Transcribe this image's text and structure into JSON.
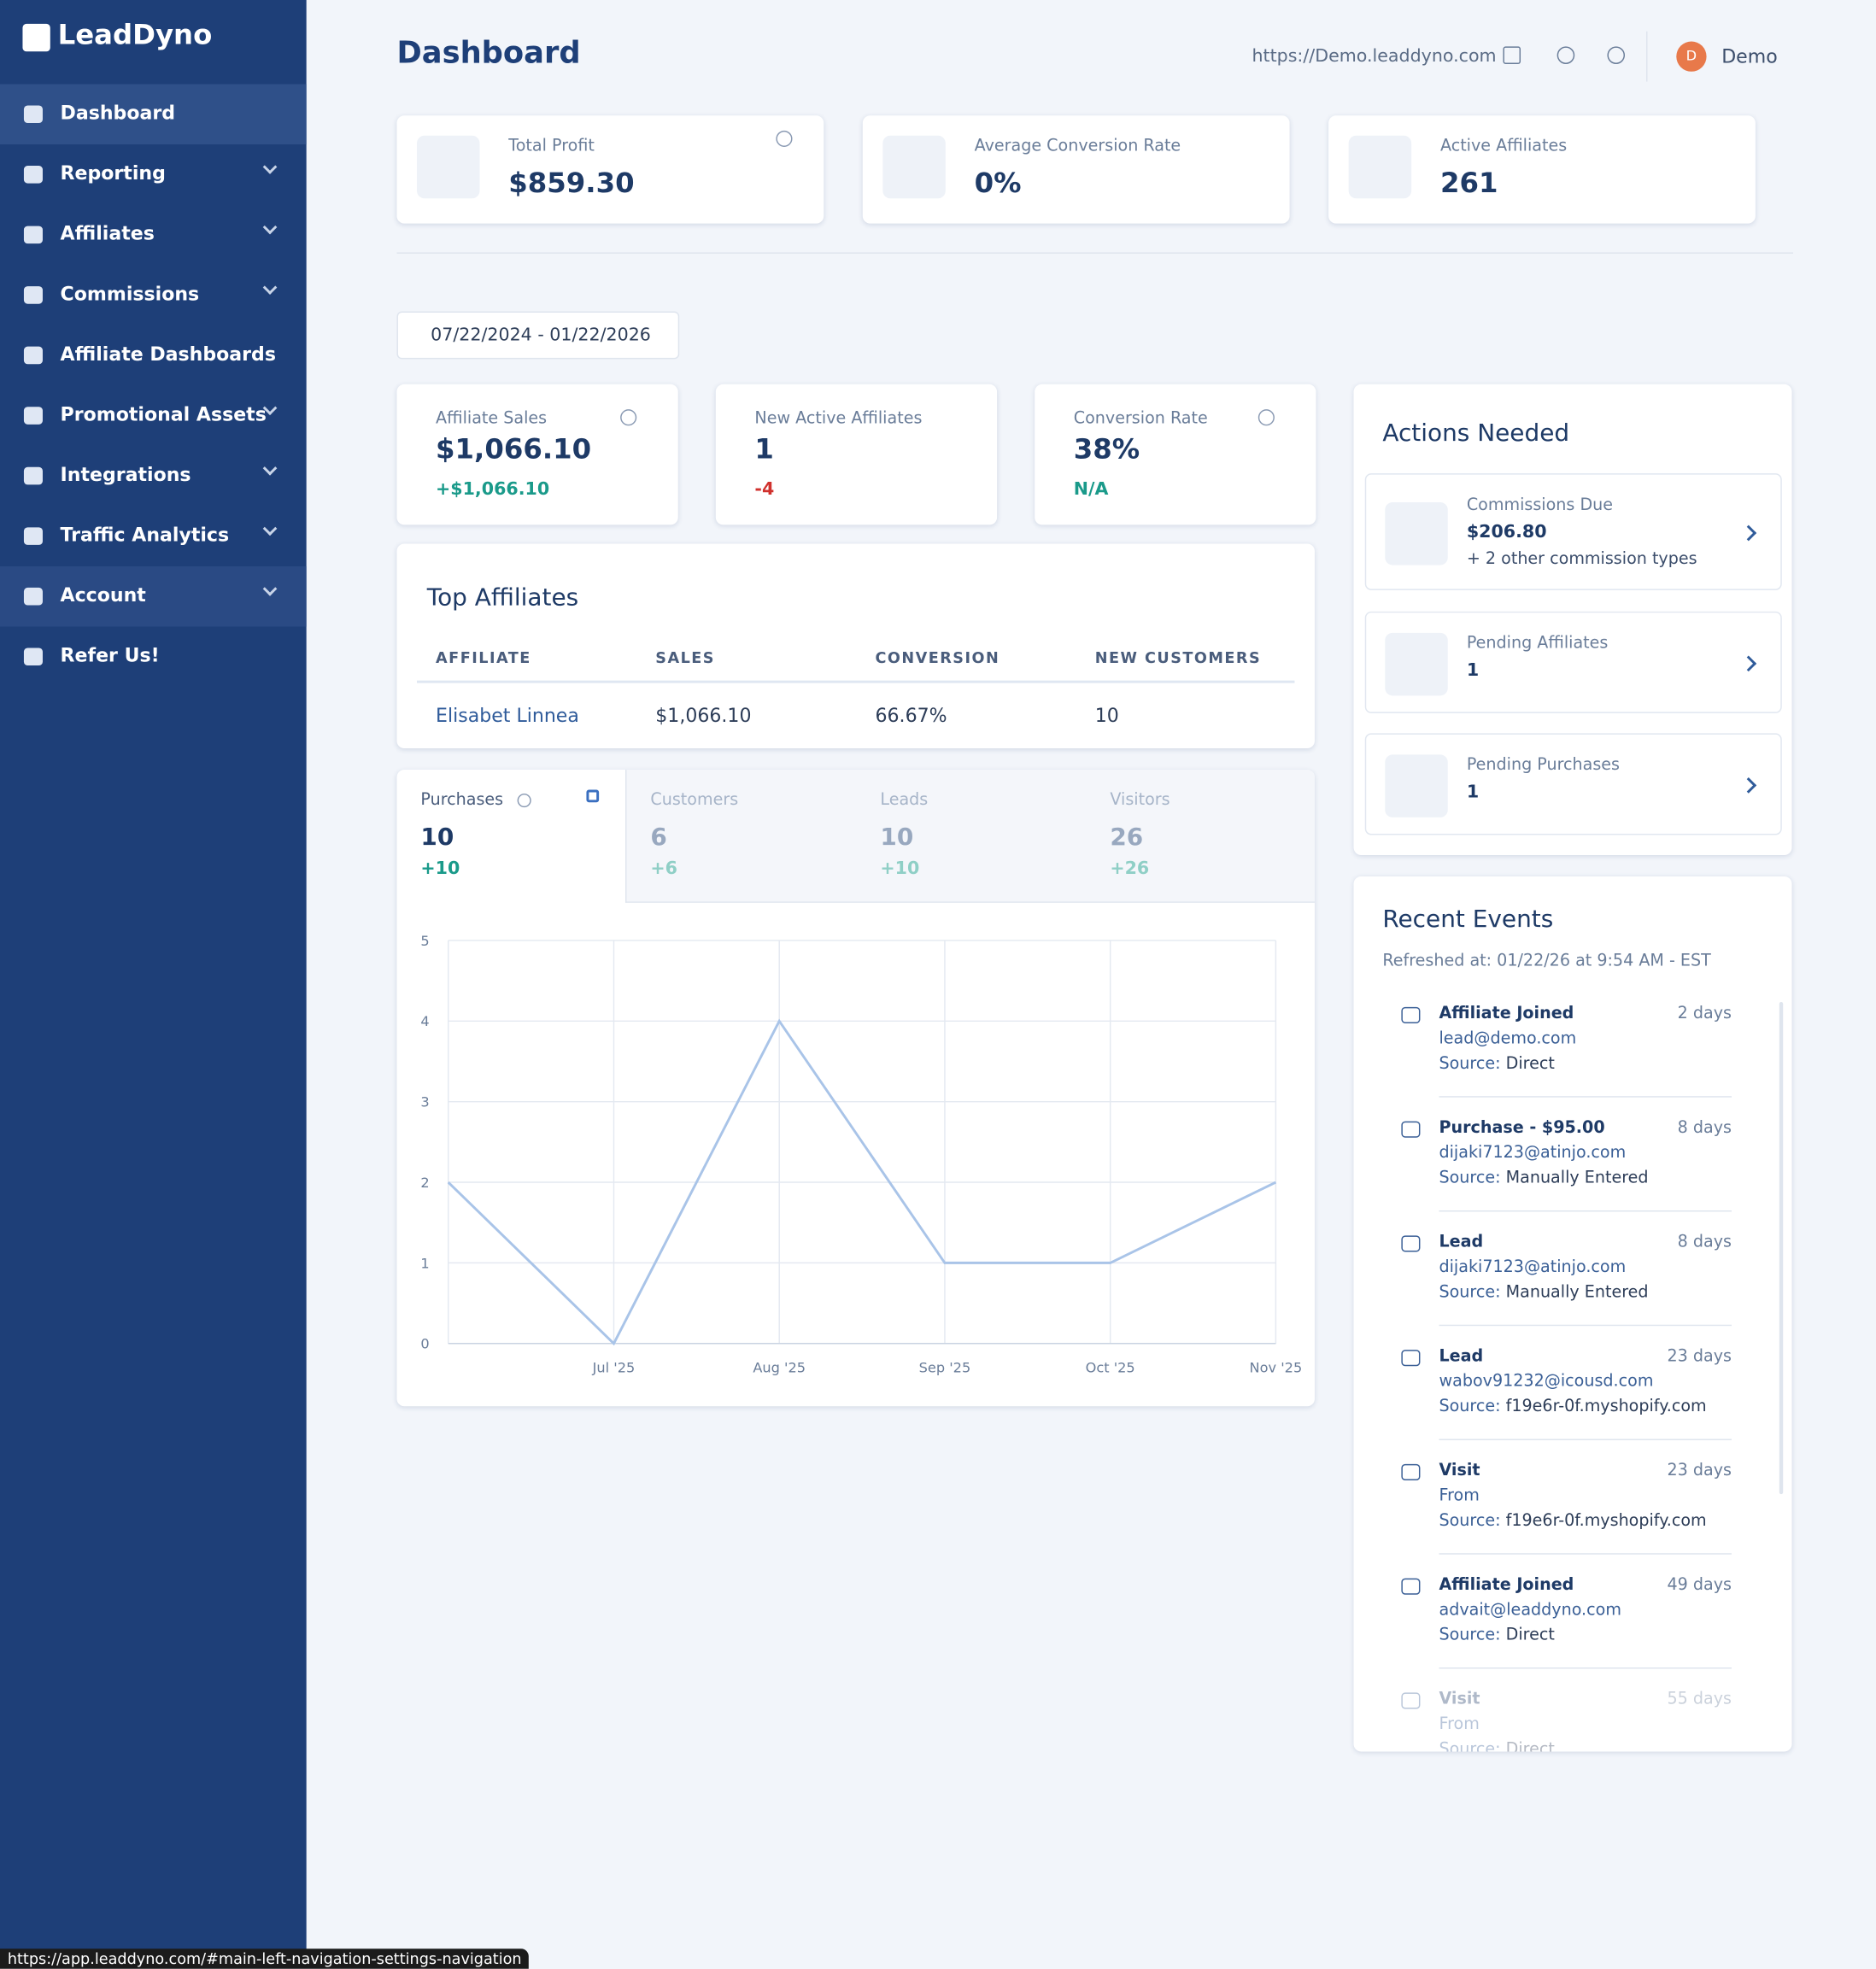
{
  "sidebar": {
    "brand": "LeadDyno",
    "nav": [
      "Dashboard",
      "Reporting",
      "Affiliates",
      "Commissions",
      "Affiliate Dashboards",
      "Promotional Assets",
      "Integrations",
      "Traffic Analytics",
      "Account",
      "Refer Us!"
    ]
  },
  "header": {
    "title": "Dashboard",
    "url": "https://Demo.leaddyno.com",
    "avatar": "D",
    "user": "Demo"
  },
  "summary_cards": [
    {
      "label": "Total Profit",
      "value": "$859.30"
    },
    {
      "label": "Average Conversion Rate",
      "value": "0%"
    },
    {
      "label": "Active Affiliates",
      "value": "261"
    }
  ],
  "date_range": "07/22/2024 - 01/22/2026",
  "kpis": [
    {
      "label": "Affiliate Sales",
      "value": "$1,066.10",
      "change": "+$1,066.10"
    },
    {
      "label": "New Active Affiliates",
      "value": "1",
      "change": "-4"
    },
    {
      "label": "Conversion Rate",
      "value": "38%",
      "change": "N/A"
    }
  ],
  "top_affiliates": {
    "title": "Top Affiliates",
    "columns": [
      "AFFILIATE",
      "SALES",
      "CONVERSION",
      "NEW CUSTOMERS"
    ],
    "rows": [
      [
        "Elisabet Linnea",
        "$1,066.10",
        "66.67%",
        "10"
      ]
    ]
  },
  "tabs": [
    {
      "label": "Purchases",
      "value": "10",
      "change": "+10"
    },
    {
      "label": "Customers",
      "value": "6",
      "change": "+6"
    },
    {
      "label": "Leads",
      "value": "10",
      "change": "+10"
    },
    {
      "label": "Visitors",
      "value": "26",
      "change": "+26"
    }
  ],
  "chart_data": {
    "type": "line",
    "categories": [
      null,
      "Jul '25",
      "Aug '25",
      "Sep '25",
      "Oct '25",
      "Nov '25"
    ],
    "values": [
      2,
      0,
      4,
      1,
      1,
      2
    ],
    "ylim": [
      0,
      5
    ],
    "yticks": [
      0,
      1,
      2,
      3,
      4,
      5
    ],
    "color": "#a9c4e8",
    "grid": true
  },
  "actions": {
    "title": "Actions Needed",
    "items": [
      {
        "label": "Commissions Due",
        "value": "$206.80",
        "note": "+ 2 other commission types"
      },
      {
        "label": "Pending Affiliates",
        "value": "1"
      },
      {
        "label": "Pending Purchases",
        "value": "1"
      }
    ]
  },
  "events": {
    "title": "Recent Events",
    "refreshed": "Refreshed at: 01/22/26 at 9:54 AM - EST",
    "items": [
      {
        "title": "Affiliate Joined",
        "age": "2 days",
        "detail": "lead@demo.com",
        "source_label": "Source:",
        "source": "Direct"
      },
      {
        "title": "Purchase - $95.00",
        "age": "8 days",
        "detail": "dijaki7123@atinjo.com",
        "source_label": "Source:",
        "source": "Manually Entered"
      },
      {
        "title": "Lead",
        "age": "8 days",
        "detail": "dijaki7123@atinjo.com",
        "source_label": "Source:",
        "source": "Manually Entered"
      },
      {
        "title": "Lead",
        "age": "23 days",
        "detail": "wabov91232@icousd.com",
        "source_label": "Source:",
        "source": "f19e6r-0f.myshopify.com"
      },
      {
        "title": "Visit",
        "age": "23 days",
        "detail": "From",
        "source_label": "Source:",
        "source": "f19e6r-0f.myshopify.com"
      },
      {
        "title": "Affiliate Joined",
        "age": "49 days",
        "detail": "advait@leaddyno.com",
        "source_label": "Source:",
        "source": "Direct"
      },
      {
        "title": "Visit",
        "age": "55 days",
        "detail": "From",
        "source_label": "Source:",
        "source": "Direct"
      }
    ]
  },
  "status_url": "https://app.leaddyno.com/#main-left-navigation-settings-navigation"
}
